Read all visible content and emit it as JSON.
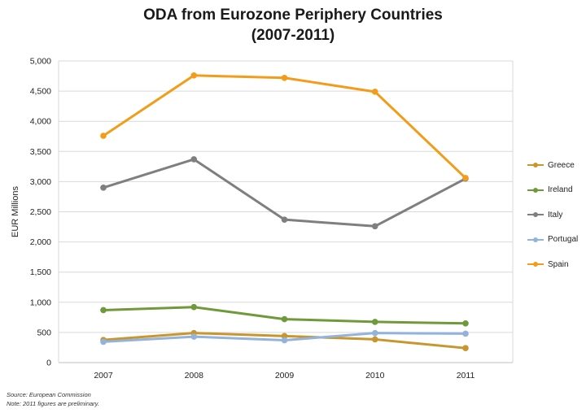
{
  "chart_data": {
    "type": "line",
    "title_line1": "ODA from Eurozone Periphery Countries",
    "title_line2": "(2007-2011)",
    "ylabel": "EUR Millions",
    "xlabel": "",
    "categories": [
      "2007",
      "2008",
      "2009",
      "2010",
      "2011"
    ],
    "ylim": [
      0,
      5000
    ],
    "yticks": [
      0,
      500,
      1000,
      1500,
      2000,
      2500,
      3000,
      3500,
      4000,
      4500,
      5000
    ],
    "ytick_labels": [
      "0",
      "500",
      "1,000",
      "1,500",
      "2,000",
      "2,500",
      "3,000",
      "3,500",
      "4,000",
      "4,500",
      "5,000"
    ],
    "grid": true,
    "legend_position": "right",
    "series": [
      {
        "name": "Greece",
        "color": "#c8962d",
        "values": [
          375,
          490,
          440,
          385,
          240
        ]
      },
      {
        "name": "Ireland",
        "color": "#6f9a3a",
        "values": [
          870,
          920,
          720,
          675,
          650
        ]
      },
      {
        "name": "Italy",
        "color": "#7f7f7f",
        "values": [
          2900,
          3370,
          2370,
          2260,
          3050
        ]
      },
      {
        "name": "Portugal",
        "color": "#93b3dc",
        "values": [
          345,
          430,
          370,
          490,
          480
        ]
      },
      {
        "name": "Spain",
        "color": "#f39c1a",
        "values": [
          3760,
          4760,
          4720,
          4490,
          3060
        ]
      }
    ]
  },
  "notes": {
    "source": "Source: European Commission",
    "note": "Note: 2011 figures are preliminary."
  }
}
